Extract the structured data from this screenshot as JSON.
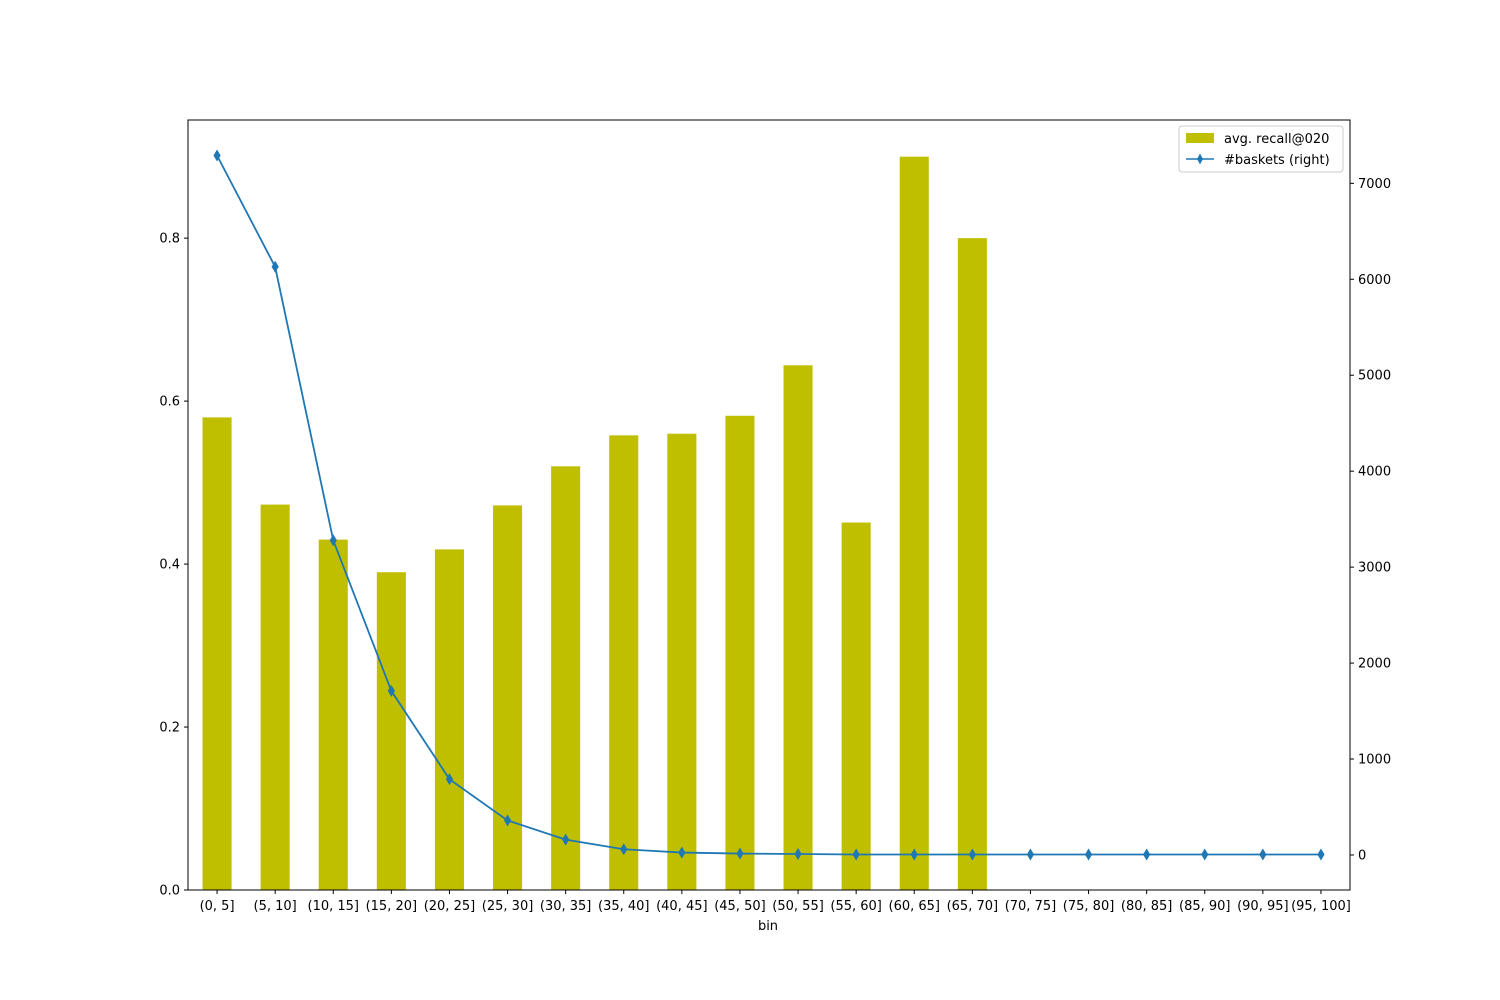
{
  "chart_data": {
    "type": "bar",
    "categories": [
      "(0, 5]",
      "(5, 10]",
      "(10, 15]",
      "(15, 20]",
      "(20, 25]",
      "(25, 30]",
      "(30, 35]",
      "(35, 40]",
      "(40, 45]",
      "(45, 50]",
      "(50, 55]",
      "(55, 60]",
      "(60, 65]",
      "(65, 70]",
      "(70, 75]",
      "(75, 80]",
      "(80, 85]",
      "(85, 90]",
      "(90, 95]",
      "(95, 100]"
    ],
    "xlabel": "bin",
    "series": [
      {
        "name": "avg. recall@020",
        "type": "bar",
        "axis": "left",
        "color": "#bfbf00",
        "values": [
          0.58,
          0.473,
          0.43,
          0.39,
          0.418,
          0.472,
          0.52,
          0.558,
          0.56,
          0.582,
          0.644,
          0.451,
          0.9,
          0.8,
          null,
          null,
          null,
          null,
          null,
          null
        ]
      },
      {
        "name": "#baskets (right)",
        "type": "line",
        "axis": "right",
        "color": "#1f77b4",
        "marker": "thin-diamond",
        "values": [
          7290,
          6130,
          3280,
          1710,
          790,
          360,
          160,
          60,
          25,
          15,
          10,
          5,
          5,
          5,
          5,
          5,
          5,
          5,
          5,
          5
        ]
      }
    ],
    "y_left": {
      "lim": [
        0,
        0.945
      ],
      "ticks": [
        0.0,
        0.2,
        0.4,
        0.6,
        0.8
      ],
      "tick_labels": [
        "0.0",
        "0.2",
        "0.4",
        "0.6",
        "0.8"
      ]
    },
    "y_right": {
      "lim": [
        -365,
        7660
      ],
      "ticks": [
        0,
        1000,
        2000,
        3000,
        4000,
        5000,
        6000,
        7000
      ],
      "tick_labels": [
        "0",
        "1000",
        "2000",
        "3000",
        "4000",
        "5000",
        "6000",
        "7000"
      ]
    },
    "grid": false,
    "legend": "top-right"
  }
}
